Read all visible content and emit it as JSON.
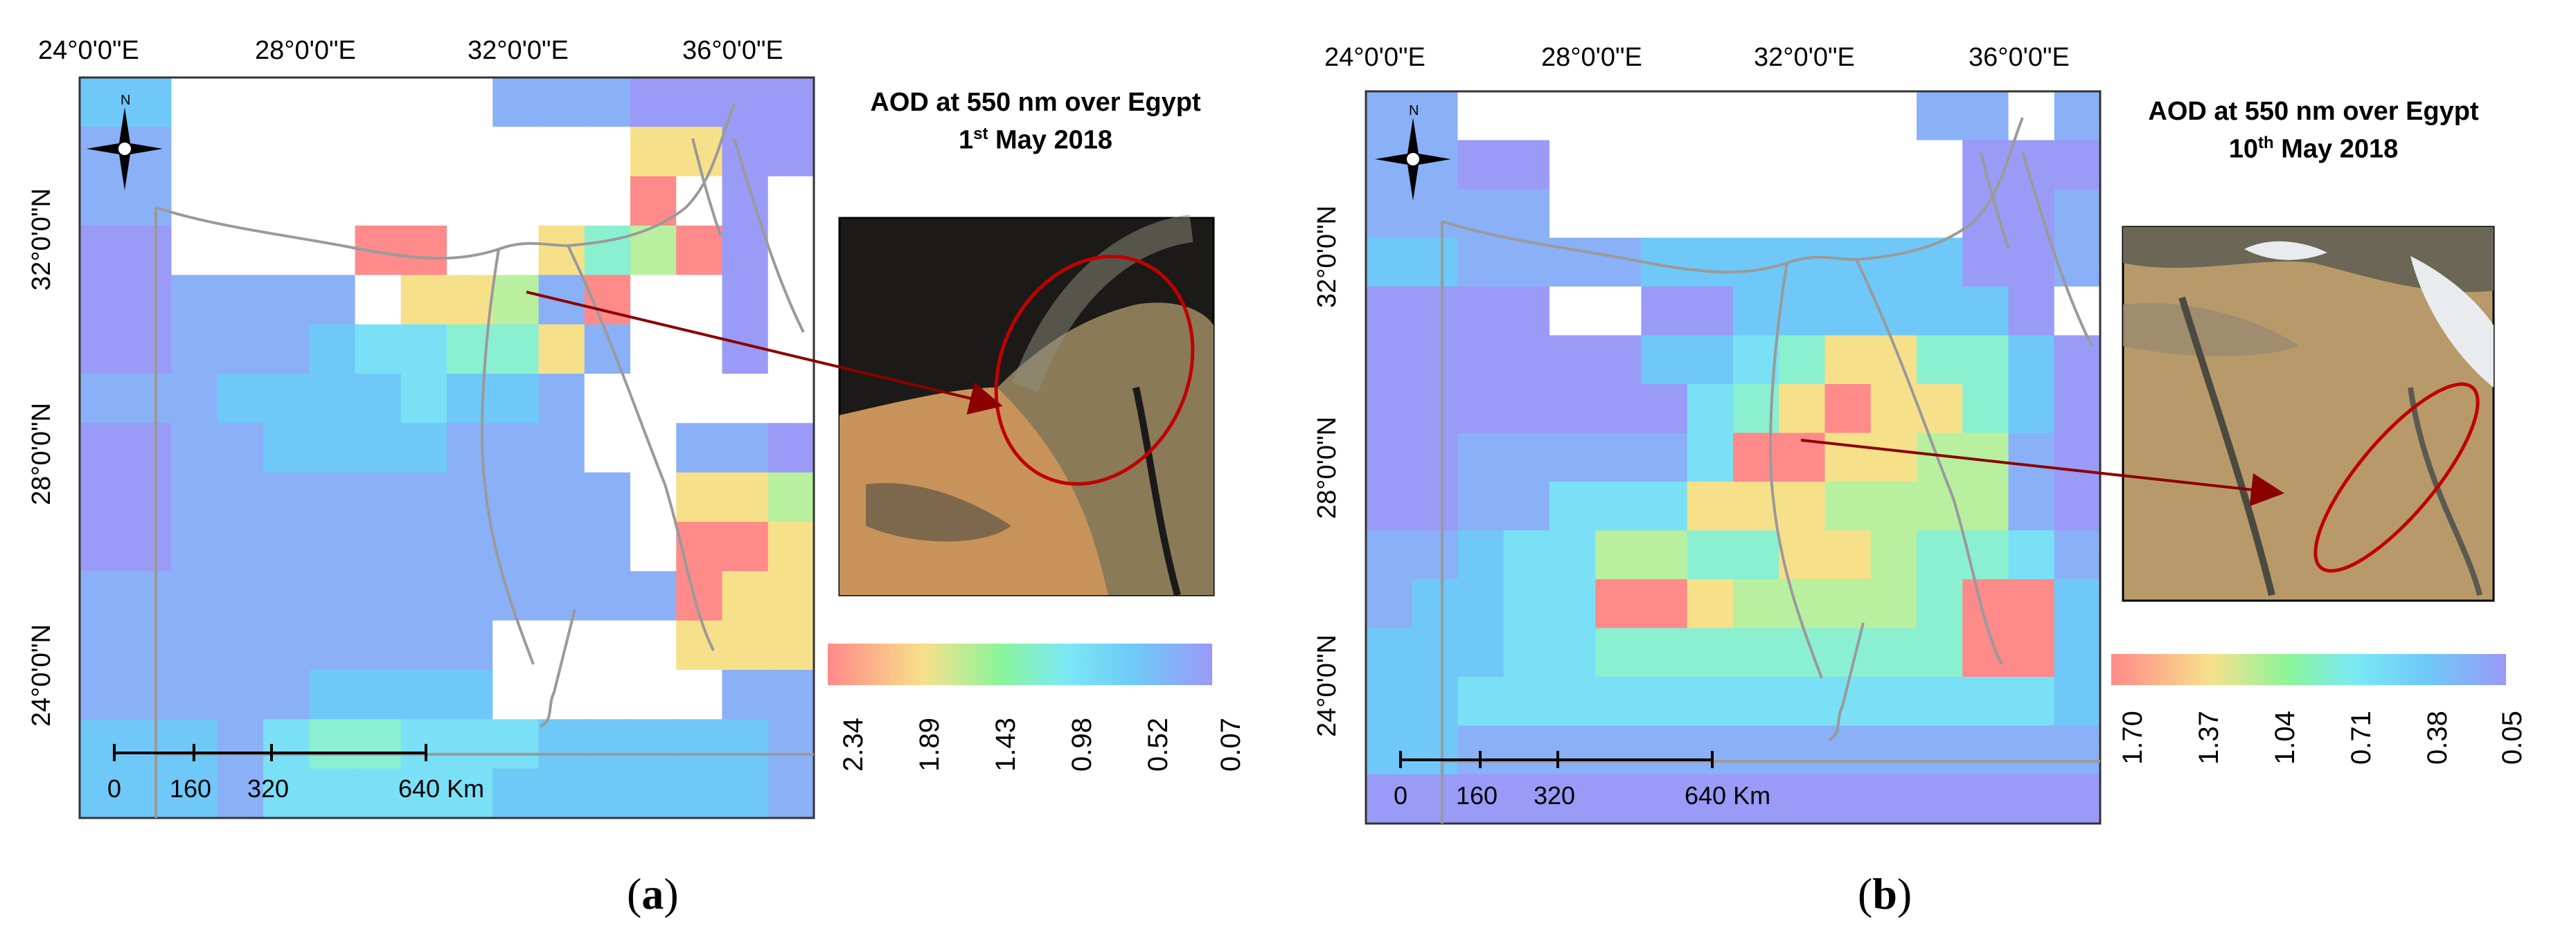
{
  "panels": [
    {
      "id": "a",
      "title_line1": "AOD at 550 nm over Egypt",
      "title_day": "1",
      "title_sup": "st",
      "title_month_year": "May 2018",
      "lon_ticks": [
        "24°0'0\"E",
        "28°0'0\"E",
        "32°0'0\"E",
        "36°0'0\"E"
      ],
      "lat_ticks": [
        "32°0'0\"N",
        "28°0'0\"N",
        "24°0'0\"N"
      ],
      "scale_labels": [
        "0",
        "160",
        "320",
        "640 Km"
      ],
      "colorbar_labels": [
        "2.34",
        "1.89",
        "1.43",
        "0.98",
        "0.52",
        "0.07"
      ],
      "caption": "a",
      "inset_description_colors": [
        "#2a2420",
        "#c8935a",
        "#6b5e4a"
      ]
    },
    {
      "id": "b",
      "title_line1": "AOD at 550 nm over Egypt",
      "title_day": "10",
      "title_sup": "th",
      "title_month_year": "May 2018",
      "lon_ticks": [
        "24°0'0\"E",
        "28°0'0\"E",
        "32°0'0\"E",
        "36°0'0\"E"
      ],
      "lat_ticks": [
        "32°0'0\"N",
        "28°0'0\"N",
        "24°0'0\"N"
      ],
      "scale_labels": [
        "0",
        "160",
        "320",
        "640 Km"
      ],
      "colorbar_labels": [
        "1.70",
        "1.37",
        "1.04",
        "0.71",
        "0.38",
        "0.05"
      ],
      "caption": "b",
      "inset_description_colors": [
        "#b89a6a",
        "#9a8a70",
        "#e8ecef"
      ]
    }
  ],
  "colors": {
    "gradient": [
      "#ff8a8a",
      "#f7e08a",
      "#8af59a",
      "#7ae8f5",
      "#6fc8f7",
      "#9a9af7"
    ],
    "boundary": "#9a9a9a",
    "arrow": "#8b0000",
    "ellipse": "#c00000"
  },
  "icons": [
    "north-arrow-icon"
  ]
}
